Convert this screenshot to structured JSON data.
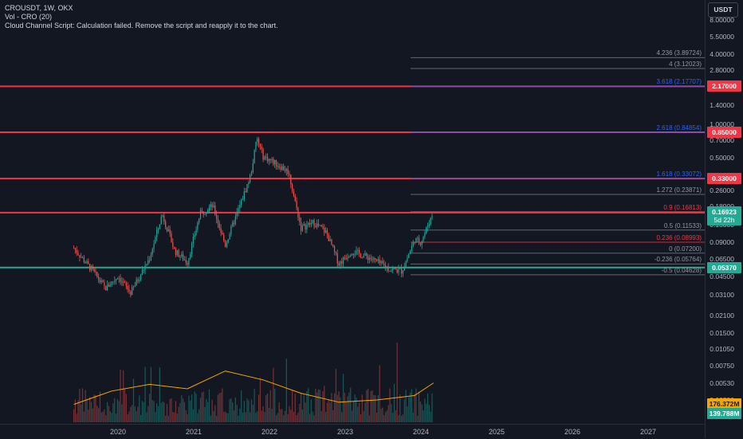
{
  "legend": {
    "symbol_line": "CROUSDT, 1W, OKX",
    "volume_line": "Vol - CRO (20)",
    "error_line": "Cloud Channel Script: Calculation failed. Remove the script and reapply it to the chart."
  },
  "currency_label": "USDT",
  "price_ticks": [
    "8.00000",
    "5.50000",
    "4.00000",
    "2.80000",
    "2.00000",
    "1.40000",
    "1.00000",
    "0.70000",
    "0.50000",
    "0.36000",
    "0.26000",
    "0.18000",
    "0.13000",
    "0.09000",
    "0.06500",
    "0.04500",
    "0.03100",
    "0.02100",
    "0.01500",
    "0.01050",
    "0.00750",
    "0.00530",
    "0.00380"
  ],
  "horizontal_lines": [
    {
      "label": "2.17000",
      "color": "#f23645"
    },
    {
      "label": "0.85000",
      "color": "#f23645"
    },
    {
      "label": "0.33000",
      "color": "#f23645"
    },
    {
      "label": "0.16450",
      "color": "#f23645"
    },
    {
      "label": "0.05370",
      "color": "#22ab94"
    }
  ],
  "current_price": {
    "label": "0.16923",
    "countdown": "5d 22h",
    "color": "#22ab94"
  },
  "volume_badges": [
    {
      "label": "176.372M",
      "color": "#f7a600"
    },
    {
      "label": "139.788M",
      "color": "#22ab94"
    }
  ],
  "fib_levels": [
    {
      "label": "4.236 (3.89724)",
      "color": "#787b86"
    },
    {
      "label": "4 (3.12023)",
      "color": "#787b86"
    },
    {
      "label": "3.618 (2.17707)",
      "color": "#2962ff"
    },
    {
      "label": "2.618 (0.84854)",
      "color": "#2962ff"
    },
    {
      "label": "1.618 (0.33072)",
      "color": "#2962ff"
    },
    {
      "label": "1.272 (0.23871)",
      "color": "#787b86"
    },
    {
      "label": "0.9 (0.16813)",
      "color": "#f23645"
    },
    {
      "label": "0.5 (0.11533)",
      "color": "#787b86"
    },
    {
      "label": "0.236 (0.08993)",
      "color": "#f23645"
    },
    {
      "label": "0 (0.07200)",
      "color": "#787b86"
    },
    {
      "label": "-0.236 (0.05764)",
      "color": "#787b86"
    },
    {
      "label": "-0.5 (0.04628)",
      "color": "#787b86"
    }
  ],
  "time_labels": [
    "2020",
    "2021",
    "2022",
    "2023",
    "2024",
    "2025",
    "2026",
    "2027"
  ],
  "colors": {
    "up": "#26a69a",
    "down": "#ef5350",
    "volume_ma": "#f7a600",
    "background": "#131722"
  },
  "chart_data": {
    "type": "candlestick",
    "symbol": "CROUSDT",
    "interval": "1W",
    "exchange": "OKX",
    "y_scale": "log",
    "price_series": {
      "x": [
        "2019-06",
        "2019-09",
        "2019-11",
        "2020-01",
        "2020-03",
        "2020-06",
        "2020-08",
        "2020-10",
        "2020-12",
        "2021-02",
        "2021-04",
        "2021-06",
        "2021-08",
        "2021-10",
        "2021-11",
        "2021-12",
        "2022-02",
        "2022-04",
        "2022-06",
        "2022-08",
        "2022-10",
        "2022-12",
        "2023-02",
        "2023-05",
        "2023-08",
        "2023-10",
        "2023-12",
        "2024-01",
        "2024-03"
      ],
      "close": [
        0.08,
        0.05,
        0.035,
        0.045,
        0.032,
        0.065,
        0.16,
        0.075,
        0.06,
        0.16,
        0.19,
        0.085,
        0.17,
        0.35,
        0.75,
        0.52,
        0.45,
        0.38,
        0.12,
        0.135,
        0.11,
        0.058,
        0.075,
        0.065,
        0.052,
        0.05,
        0.095,
        0.09,
        0.169
      ]
    },
    "volume_ma_series": {
      "x": [
        "2019-06",
        "2019-12",
        "2020-06",
        "2020-12",
        "2021-06",
        "2021-12",
        "2022-06",
        "2022-12",
        "2023-06",
        "2023-12",
        "2024-03"
      ],
      "values": [
        80,
        140,
        170,
        150,
        230,
        190,
        130,
        90,
        100,
        120,
        176.372
      ]
    }
  }
}
